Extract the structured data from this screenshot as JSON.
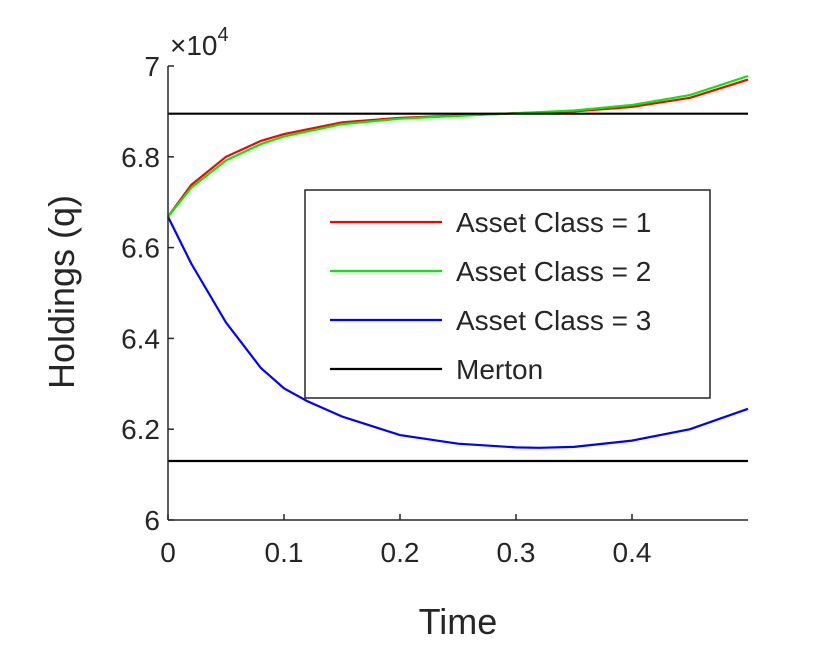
{
  "chart_data": {
    "type": "line",
    "title": "",
    "xlabel": "Time",
    "ylabel": "Holdings (q)",
    "exponent_label": "×10",
    "exponent_power": "4",
    "xlim": [
      0,
      0.5
    ],
    "ylim": [
      6.0,
      7.0
    ],
    "x_ticks": [
      0,
      0.1,
      0.2,
      0.3,
      0.4
    ],
    "x_tick_labels": [
      "0",
      "0.1",
      "0.2",
      "0.3",
      "0.4"
    ],
    "y_ticks": [
      6.0,
      6.2,
      6.4,
      6.6,
      6.8,
      7.0
    ],
    "y_tick_labels": [
      "6",
      "6.2",
      "6.4",
      "6.6",
      "6.8",
      "7"
    ],
    "grid": false,
    "legend_position": "center-right",
    "series": [
      {
        "name": "Asset Class = 1",
        "color": "#ff0000",
        "x": [
          0,
          0.02,
          0.05,
          0.08,
          0.1,
          0.15,
          0.2,
          0.25,
          0.3,
          0.35,
          0.4,
          0.45,
          0.5
        ],
        "y": [
          6.668,
          6.738,
          6.8,
          6.835,
          6.85,
          6.876,
          6.886,
          6.891,
          6.896,
          6.9,
          6.91,
          6.93,
          6.97
        ]
      },
      {
        "name": "Asset Class = 2",
        "color": "#00ee00",
        "x": [
          0,
          0.02,
          0.05,
          0.08,
          0.1,
          0.15,
          0.2,
          0.25,
          0.3,
          0.35,
          0.4,
          0.45,
          0.5
        ],
        "y": [
          6.668,
          6.732,
          6.792,
          6.828,
          6.845,
          6.872,
          6.884,
          6.89,
          6.896,
          6.902,
          6.914,
          6.936,
          6.978
        ]
      },
      {
        "name": "Asset Class = 3",
        "color": "#0000ff",
        "x": [
          0,
          0.02,
          0.05,
          0.08,
          0.1,
          0.12,
          0.15,
          0.2,
          0.25,
          0.3,
          0.32,
          0.35,
          0.4,
          0.45,
          0.5
        ],
        "y": [
          6.668,
          6.565,
          6.435,
          6.335,
          6.29,
          6.262,
          6.228,
          6.187,
          6.168,
          6.16,
          6.159,
          6.161,
          6.175,
          6.2,
          6.245
        ]
      },
      {
        "name": "Merton",
        "color": "#000000",
        "x": [
          0,
          0.5
        ],
        "y": [
          6.895,
          6.895
        ]
      },
      {
        "name": "",
        "color": "#000000",
        "x": [
          0,
          0.5
        ],
        "y": [
          6.13,
          6.13
        ]
      }
    ],
    "legend_entries": [
      "Asset Class = 1",
      "Asset Class = 2",
      "Asset Class = 3",
      "Merton"
    ]
  }
}
